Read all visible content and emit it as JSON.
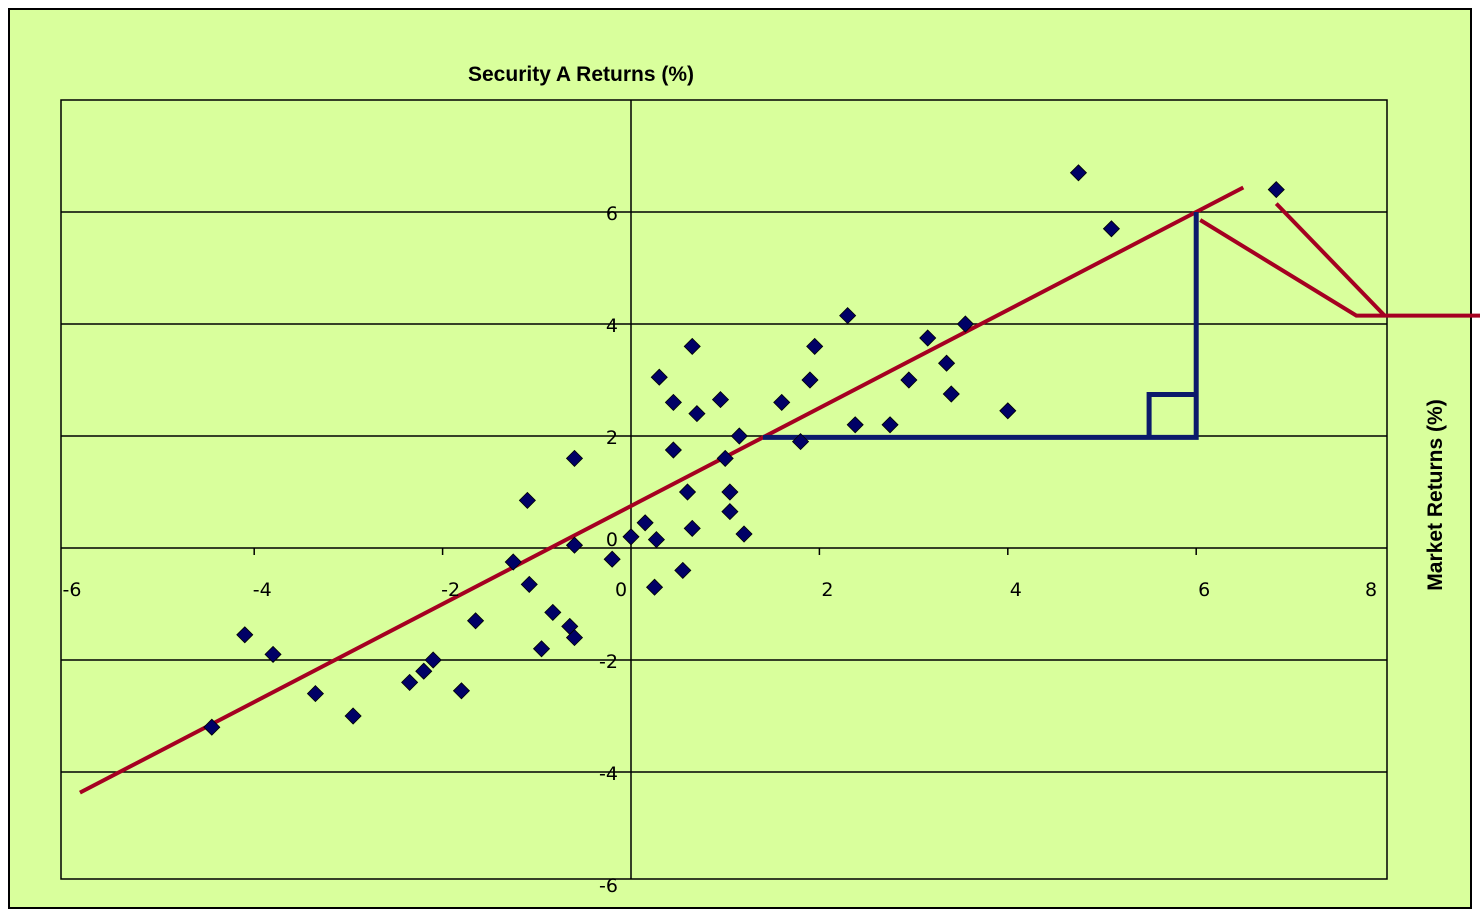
{
  "colors": {
    "background": "#d9ff9c",
    "frame": "#000000",
    "regression_line": "#a50021",
    "markers": "#000066",
    "slope_triangle": "#0b1a6b"
  },
  "chart_data": {
    "type": "scatter",
    "title": "",
    "ylabel": "Security A Returns (%)",
    "xlabel": "Market Returns (%)",
    "xlim": [
      -6,
      8
    ],
    "ylim": [
      -6,
      7
    ],
    "grid": true,
    "x_ticks": [
      "-6",
      "-4",
      "-2",
      "0",
      "2",
      "4",
      "6",
      "8"
    ],
    "y_ticks": [
      "6",
      "4",
      "2",
      "0",
      "-2",
      "-4",
      "-6"
    ],
    "points": [
      {
        "x": -4.45,
        "y": -3.2
      },
      {
        "x": -4.1,
        "y": -1.55
      },
      {
        "x": -3.8,
        "y": -1.9
      },
      {
        "x": -3.35,
        "y": -2.6
      },
      {
        "x": -2.95,
        "y": -3.0
      },
      {
        "x": -2.35,
        "y": -2.4
      },
      {
        "x": -2.2,
        "y": -2.2
      },
      {
        "x": -2.1,
        "y": -2.0
      },
      {
        "x": -1.8,
        "y": -2.55
      },
      {
        "x": -1.65,
        "y": -1.3
      },
      {
        "x": -1.25,
        "y": -0.25
      },
      {
        "x": -1.1,
        "y": 0.85
      },
      {
        "x": -1.08,
        "y": -0.65
      },
      {
        "x": -0.95,
        "y": -1.8
      },
      {
        "x": -0.83,
        "y": -1.15
      },
      {
        "x": -0.65,
        "y": -1.4
      },
      {
        "x": -0.6,
        "y": -1.6
      },
      {
        "x": -0.6,
        "y": 0.05
      },
      {
        "x": -0.6,
        "y": 1.6
      },
      {
        "x": -0.2,
        "y": -0.2
      },
      {
        "x": 0.0,
        "y": 0.2
      },
      {
        "x": 0.15,
        "y": 0.45
      },
      {
        "x": 0.25,
        "y": -0.7
      },
      {
        "x": 0.27,
        "y": 0.15
      },
      {
        "x": 0.3,
        "y": 3.05
      },
      {
        "x": 0.45,
        "y": 2.6
      },
      {
        "x": 0.45,
        "y": 1.75
      },
      {
        "x": 0.55,
        "y": -0.4
      },
      {
        "x": 0.6,
        "y": 1.0
      },
      {
        "x": 0.65,
        "y": 0.35
      },
      {
        "x": 0.65,
        "y": 3.6
      },
      {
        "x": 0.7,
        "y": 2.4
      },
      {
        "x": 0.95,
        "y": 2.65
      },
      {
        "x": 1.0,
        "y": 1.6
      },
      {
        "x": 1.05,
        "y": 1.0
      },
      {
        "x": 1.05,
        "y": 0.65
      },
      {
        "x": 1.15,
        "y": 2.0
      },
      {
        "x": 1.2,
        "y": 0.25
      },
      {
        "x": 1.6,
        "y": 2.6
      },
      {
        "x": 1.8,
        "y": 1.9
      },
      {
        "x": 1.9,
        "y": 3.0
      },
      {
        "x": 1.95,
        "y": 3.6
      },
      {
        "x": 2.3,
        "y": 4.15
      },
      {
        "x": 2.38,
        "y": 2.2
      },
      {
        "x": 2.75,
        "y": 2.2
      },
      {
        "x": 2.95,
        "y": 3.0
      },
      {
        "x": 3.15,
        "y": 3.75
      },
      {
        "x": 3.35,
        "y": 3.3
      },
      {
        "x": 3.4,
        "y": 2.75
      },
      {
        "x": 3.55,
        "y": 4.0
      },
      {
        "x": 4.0,
        "y": 2.45
      },
      {
        "x": 4.75,
        "y": 6.7
      },
      {
        "x": 5.1,
        "y": 5.7
      },
      {
        "x": 6.85,
        "y": 6.4
      }
    ],
    "regression_line": {
      "intercept": 0.75,
      "slope": 0.875,
      "x_start": -5.85,
      "x_end": 6.5
    },
    "slope_triangle": {
      "x_start": 1.4,
      "x_end": 6.0
    }
  }
}
